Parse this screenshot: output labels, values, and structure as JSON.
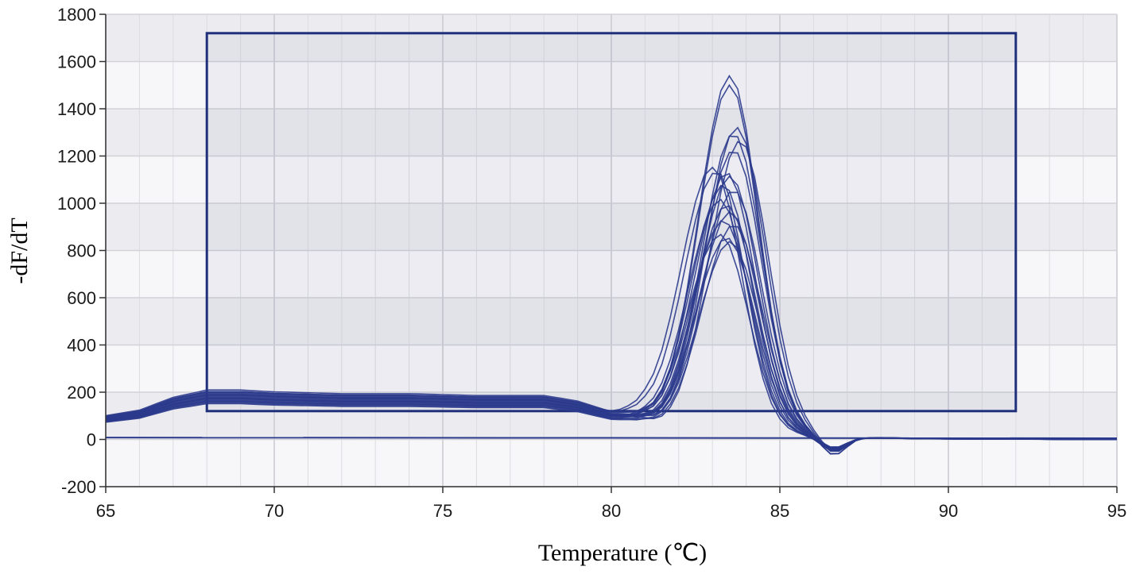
{
  "chart_data": {
    "type": "line",
    "title": "",
    "xlabel": "Temperature (℃)",
    "ylabel": "-dF/dT",
    "xlim": [
      65,
      95
    ],
    "ylim": [
      -200,
      1800
    ],
    "x_ticks": [
      65,
      70,
      75,
      80,
      85,
      90,
      95
    ],
    "y_ticks": [
      -200,
      0,
      200,
      400,
      600,
      800,
      1000,
      1200,
      1400,
      1600,
      1800
    ],
    "grid": true,
    "legend": "none",
    "line_color": "#2b3a8c",
    "region_color": "#1f2f7a",
    "region": {
      "x": [
        68,
        92
      ],
      "y": [
        120,
        1720
      ]
    },
    "baseline": {
      "x": [
        65,
        95
      ],
      "y": [
        8,
        5
      ]
    },
    "series_template": {
      "x": [
        65,
        66,
        67,
        68,
        69,
        70,
        72,
        74,
        76,
        78,
        79,
        79.5,
        80,
        80.5,
        81,
        81.5,
        82,
        82.5,
        83,
        83.5,
        84,
        84.5,
        85,
        85.5,
        86,
        86.5,
        87,
        87.5,
        88,
        88.5,
        89,
        90,
        92,
        95
      ],
      "shape": [
        0.65,
        0.8,
        1.15,
        1.35,
        1.35,
        1.3,
        1.25,
        1.25,
        1.2,
        1.2,
        1.05,
        0.9,
        0.75,
        0.7,
        0.55,
        0.22,
        -0.05,
        -0.25,
        -0.32,
        -0.2,
        -0.05,
        0.03,
        0.08,
        0.1,
        0.08,
        0.07,
        0.06,
        0.05,
        0.05,
        0.04,
        0.03,
        0.02,
        0.01,
        0
      ]
    },
    "series": [
      {
        "peak": 1570,
        "peak_x": 83.5,
        "base": 155
      },
      {
        "peak": 1530,
        "peak_x": 83.5,
        "base": 150
      },
      {
        "peak": 1340,
        "peak_x": 83.7,
        "base": 140
      },
      {
        "peak": 1320,
        "peak_x": 83.6,
        "base": 145
      },
      {
        "peak": 1280,
        "peak_x": 83.8,
        "base": 138
      },
      {
        "peak": 1250,
        "peak_x": 83.6,
        "base": 142
      },
      {
        "peak": 1200,
        "peak_x": 83.0,
        "base": 150
      },
      {
        "peak": 1180,
        "peak_x": 83.1,
        "base": 148
      },
      {
        "peak": 1160,
        "peak_x": 83.4,
        "base": 135
      },
      {
        "peak": 1140,
        "peak_x": 83.5,
        "base": 130
      },
      {
        "peak": 1110,
        "peak_x": 83.3,
        "base": 128
      },
      {
        "peak": 1080,
        "peak_x": 83.6,
        "base": 140
      },
      {
        "peak": 1050,
        "peak_x": 83.2,
        "base": 125
      },
      {
        "peak": 1020,
        "peak_x": 83.4,
        "base": 122
      },
      {
        "peak": 990,
        "peak_x": 83.5,
        "base": 132
      },
      {
        "peak": 960,
        "peak_x": 83.3,
        "base": 128
      },
      {
        "peak": 930,
        "peak_x": 83.6,
        "base": 120
      },
      {
        "peak": 900,
        "peak_x": 83.2,
        "base": 118
      },
      {
        "peak": 880,
        "peak_x": 83.4,
        "base": 115
      },
      {
        "peak": 860,
        "peak_x": 83.5,
        "base": 112
      }
    ]
  }
}
